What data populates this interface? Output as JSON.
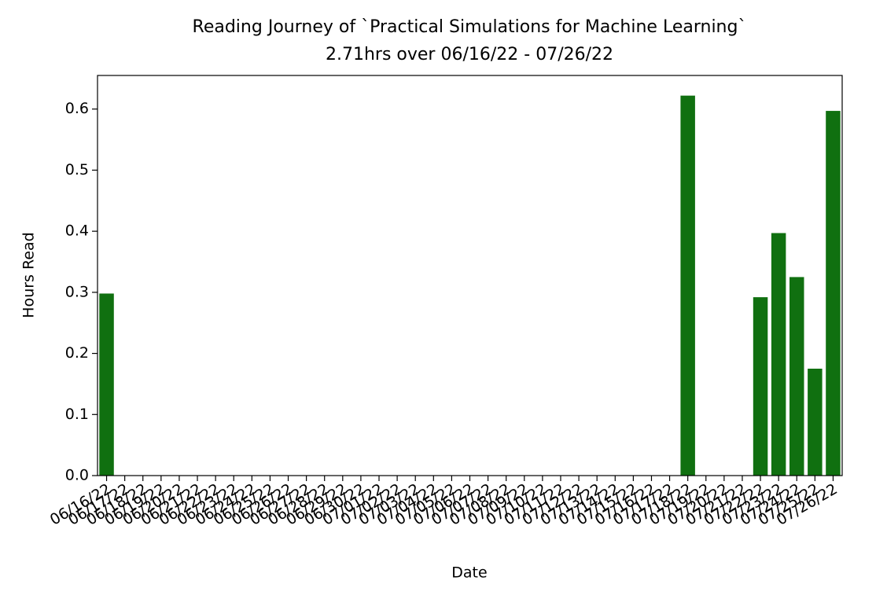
{
  "chart_data": {
    "type": "bar",
    "title": "Reading Journey of `Practical Simulations for Machine Learning`",
    "subtitle": "2.71hrs over 06/16/22 - 07/26/22",
    "x_label": "Date",
    "y_label": "Hours Read",
    "categories": [
      "06/16/22",
      "06/17/22",
      "06/18/22",
      "06/19/22",
      "06/20/22",
      "06/21/22",
      "06/22/22",
      "06/23/22",
      "06/24/22",
      "06/25/22",
      "06/26/22",
      "06/27/22",
      "06/28/22",
      "06/29/22",
      "06/30/22",
      "07/01/22",
      "07/02/22",
      "07/03/22",
      "07/04/22",
      "07/05/22",
      "07/06/22",
      "07/07/22",
      "07/08/22",
      "07/09/22",
      "07/10/22",
      "07/11/22",
      "07/12/22",
      "07/13/22",
      "07/14/22",
      "07/15/22",
      "07/16/22",
      "07/17/22",
      "07/18/22",
      "07/19/22",
      "07/20/22",
      "07/21/22",
      "07/22/22",
      "07/23/22",
      "07/24/22",
      "07/25/22",
      "07/26/22"
    ],
    "values": [
      0.298,
      0,
      0,
      0,
      0,
      0,
      0,
      0,
      0,
      0,
      0,
      0,
      0,
      0,
      0,
      0,
      0,
      0,
      0,
      0,
      0,
      0,
      0,
      0,
      0,
      0,
      0,
      0,
      0,
      0,
      0,
      0,
      0.622,
      0,
      0,
      0,
      0.292,
      0.397,
      0.325,
      0.175,
      0.597
    ],
    "color": "#107010",
    "ylim": [
      0,
      0.655
    ],
    "yticks": [
      {
        "value": 0,
        "label": "0.0"
      },
      0.1,
      0.2,
      0.3,
      0.4,
      0.5,
      0.6
    ],
    "grid": false
  }
}
